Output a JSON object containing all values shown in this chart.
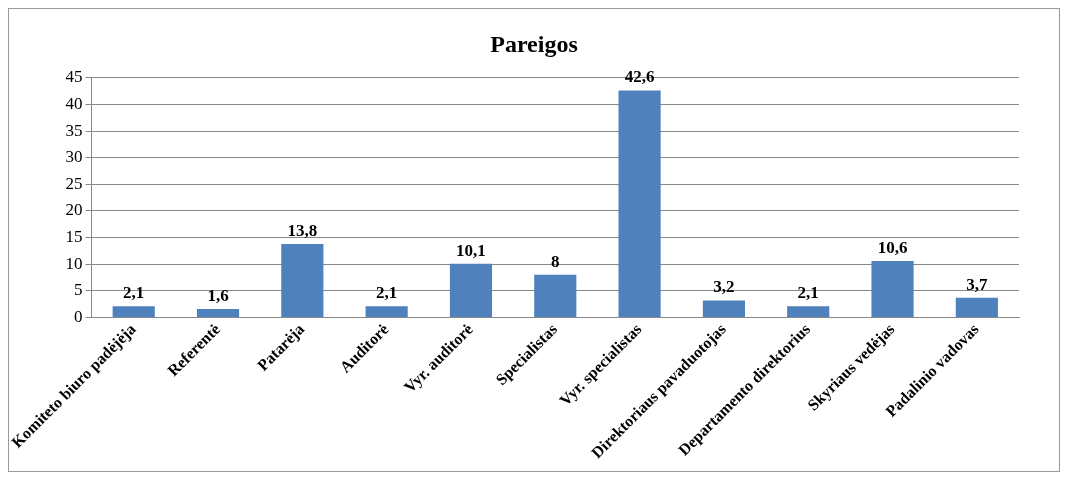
{
  "chart_data": {
    "type": "bar",
    "title": "Pareigos",
    "categories": [
      "Komiteto biuro padėjėja",
      "Referentė",
      "Patarėja",
      "Auditorė",
      "Vyr. auditorė",
      "Specialistas",
      "Vyr. specialistas",
      "Direktoriaus pavaduotojas",
      "Departamento direktorius",
      "Skyriaus vedėjas",
      "Padalinio vadovas"
    ],
    "values": [
      2.1,
      1.6,
      13.8,
      2.1,
      10.1,
      8,
      42.6,
      3.2,
      2.1,
      10.6,
      3.7
    ],
    "value_labels": [
      "2,1",
      "1,6",
      "13,8",
      "2,1",
      "10,1",
      "8",
      "42,6",
      "3,2",
      "2,1",
      "10,6",
      "3,7"
    ],
    "color": "#4f81bd",
    "ylim": [
      0,
      45
    ],
    "yticks": [
      0,
      5,
      10,
      15,
      20,
      25,
      30,
      35,
      40,
      45
    ],
    "grid": "y",
    "legend": false
  }
}
